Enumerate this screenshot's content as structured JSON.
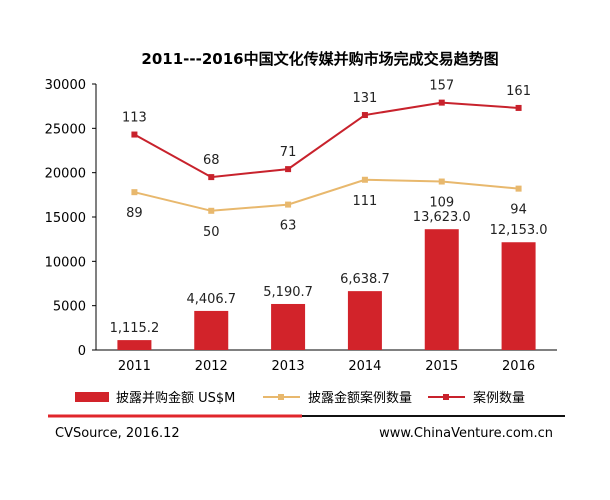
{
  "chart_data": {
    "type": "bar",
    "title": "2011---2016中国文化传媒并购市场完成交易趋势图",
    "categories": [
      "2011",
      "2012",
      "2013",
      "2014",
      "2015",
      "2016"
    ],
    "ylim": [
      0,
      30000
    ],
    "yticks": [
      0,
      5000,
      10000,
      15000,
      20000,
      25000,
      30000
    ],
    "grid": false,
    "legend_position": "bottom",
    "series": [
      {
        "name": "披露并购金额 US$M",
        "kind": "bar",
        "color": "#d2232a",
        "values": [
          1115.2,
          4406.7,
          5190.7,
          6638.7,
          13623.0,
          12153.0
        ],
        "labels": [
          "1,115.2",
          "4,406.7",
          "5,190.7",
          "6,638.7",
          "13,623.0",
          "12,153.0"
        ]
      },
      {
        "name": "披露金额案例数量",
        "kind": "line",
        "color": "#e8b86d",
        "marker": "square",
        "counts": [
          89,
          50,
          63,
          111,
          109,
          94
        ],
        "plot_values": [
          17800,
          15700,
          16400,
          19200,
          19000,
          18200
        ]
      },
      {
        "name": "案例数量",
        "kind": "line",
        "color": "#c8222c",
        "marker": "square",
        "counts": [
          113,
          68,
          71,
          131,
          157,
          161
        ],
        "plot_values": [
          24300,
          19500,
          20400,
          26500,
          27900,
          27300
        ]
      }
    ]
  },
  "footer": {
    "source": "CVSource, 2016.12",
    "website": "www.ChinaVenture.com.cn"
  }
}
